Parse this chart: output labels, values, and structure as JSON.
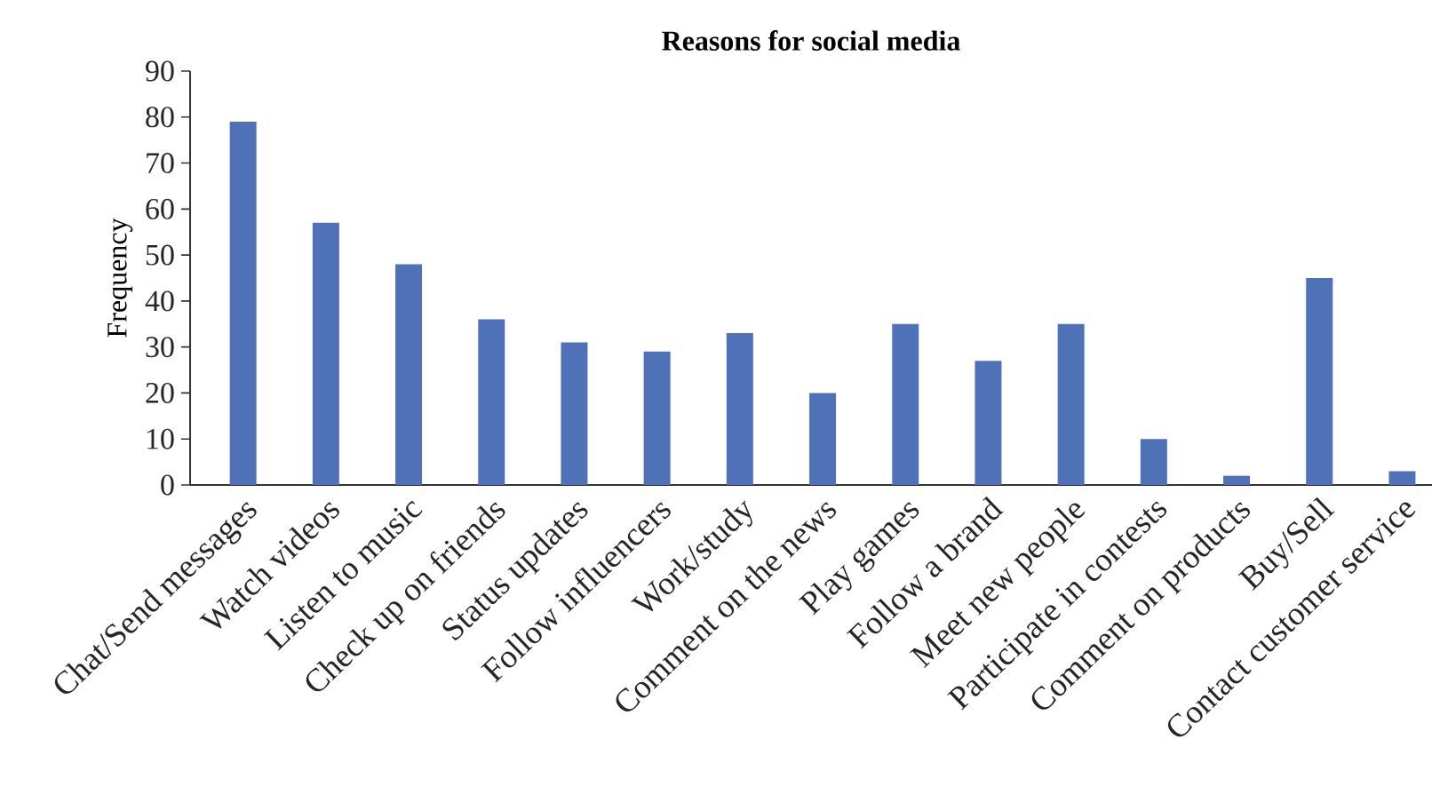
{
  "chart_data": {
    "type": "bar",
    "title": "Reasons for social media",
    "ylabel": "Frequency",
    "categories": [
      "Chat/Send messages",
      "Watch videos",
      "Listen to music",
      "Check up on friends",
      "Status updates",
      "Follow influencers",
      "Work/study",
      "Comment on the news",
      "Play games",
      "Follow a brand",
      "Meet new people",
      "Participate in contests",
      "Comment on products",
      "Buy/Sell",
      "Contact customer service"
    ],
    "values": [
      79,
      57,
      48,
      36,
      31,
      29,
      33,
      20,
      35,
      27,
      35,
      10,
      2,
      45,
      3
    ],
    "color": "#4f71b8",
    "ylim": [
      0,
      90
    ],
    "yticks": [
      0,
      10,
      20,
      30,
      40,
      50,
      60,
      70,
      80,
      90
    ],
    "grid": false
  }
}
